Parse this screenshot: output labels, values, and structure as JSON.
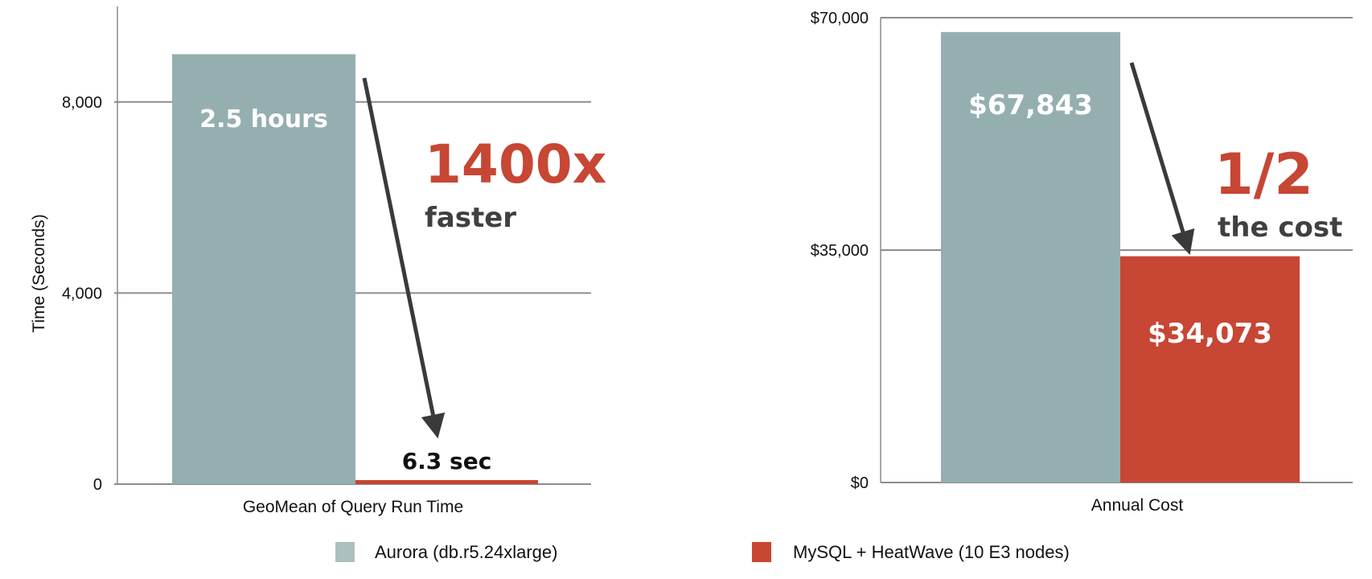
{
  "colors": {
    "aurora": "#95AFB0",
    "heatwave": "#C74634",
    "arrow": "#3A3A3A",
    "grid": "#8C8C8C",
    "callout_red": "#C74634"
  },
  "legend": {
    "items": [
      {
        "label": "Aurora (db.r5.24xlarge)",
        "color": "#ADBFBF"
      },
      {
        "label": "MySQL + HeatWave (10 E3 nodes)",
        "color": "#C74634"
      }
    ]
  },
  "chart_data": [
    {
      "type": "bar",
      "categories": [
        "GeoMean of Query Run Time"
      ],
      "series": [
        {
          "name": "Aurora (db.r5.24xlarge)",
          "values": [
            9000
          ]
        },
        {
          "name": "MySQL + HeatWave (10 E3 nodes)",
          "values": [
            6.3
          ]
        }
      ],
      "data_labels": [
        "2.5 hours",
        "6.3 sec"
      ],
      "xlabel": "GeoMean of Query Run Time",
      "ylabel": "Time (Seconds)",
      "yticks": [
        "0",
        "4,000",
        "8,000"
      ],
      "ytick_values": [
        0,
        4000,
        8000
      ],
      "ylim": [
        0,
        10000
      ],
      "grid": true,
      "callout": {
        "value": "1400x",
        "text": "faster"
      }
    },
    {
      "type": "bar",
      "categories": [
        "Annual Cost"
      ],
      "series": [
        {
          "name": "Aurora (db.r5.24xlarge)",
          "values": [
            67843
          ]
        },
        {
          "name": "MySQL + HeatWave (10 E3 nodes)",
          "values": [
            34073
          ]
        }
      ],
      "data_labels": [
        "$67,843",
        "$34,073"
      ],
      "xlabel": "Annual Cost",
      "ylabel": "",
      "yticks": [
        "$0",
        "$35,000",
        "$70,000"
      ],
      "ytick_values": [
        0,
        35000,
        70000
      ],
      "ylim": [
        0,
        70000
      ],
      "grid": true,
      "callout": {
        "value": "1/2",
        "text": "the cost"
      }
    }
  ]
}
